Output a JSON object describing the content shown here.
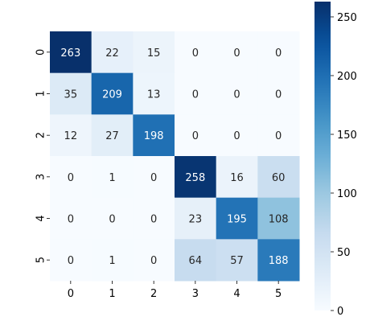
{
  "chart_data": {
    "type": "heatmap",
    "title": "",
    "xlabel": "",
    "ylabel": "",
    "x_categories": [
      "0",
      "1",
      "2",
      "3",
      "4",
      "5"
    ],
    "y_categories": [
      "0",
      "1",
      "2",
      "3",
      "4",
      "5"
    ],
    "values": [
      [
        263,
        22,
        15,
        0,
        0,
        0
      ],
      [
        35,
        209,
        13,
        0,
        0,
        0
      ],
      [
        12,
        27,
        198,
        0,
        0,
        0
      ],
      [
        0,
        1,
        0,
        258,
        16,
        60
      ],
      [
        0,
        0,
        0,
        23,
        195,
        108
      ],
      [
        0,
        1,
        0,
        64,
        57,
        188
      ]
    ],
    "colorbar": {
      "min": 0,
      "max": 263,
      "ticks": [
        0,
        50,
        100,
        150,
        200,
        250
      ],
      "tick_labels": [
        "0",
        "50",
        "100",
        "150",
        "200",
        "250"
      ],
      "colormap": "Blues"
    },
    "annotated": true
  }
}
